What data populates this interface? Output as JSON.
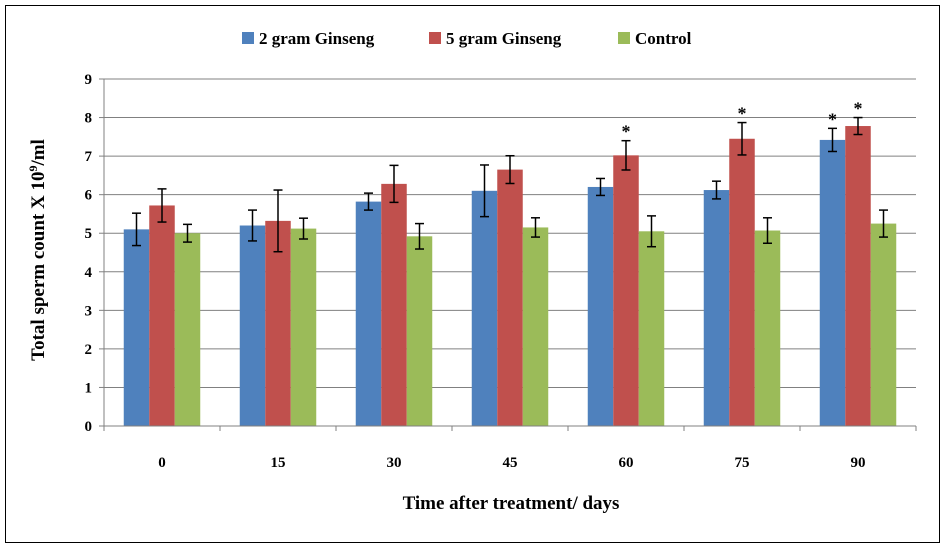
{
  "chart_data": {
    "type": "bar",
    "title": "",
    "xlabel": "Time after treatment/ days",
    "ylabel": "Total sperm count X 10",
    "ylabel_sup": "9",
    "ylabel_tail": "/ml",
    "categories": [
      "0",
      "15",
      "30",
      "45",
      "60",
      "75",
      "90"
    ],
    "ylim": [
      0,
      9
    ],
    "yticks": [
      "0",
      "1",
      "2",
      "3",
      "4",
      "5",
      "6",
      "7",
      "8",
      "9"
    ],
    "grid": true,
    "legend_position": "top",
    "series": [
      {
        "name": "2 gram Ginseng",
        "color": "#4F81BD",
        "values": [
          5.1,
          5.2,
          5.82,
          6.1,
          6.2,
          6.12,
          7.42
        ],
        "errors": [
          0.42,
          0.4,
          0.22,
          0.67,
          0.22,
          0.23,
          0.3
        ],
        "markers": [
          "",
          "",
          "",
          "",
          "",
          "",
          "*"
        ]
      },
      {
        "name": "5 gram Ginseng",
        "color": "#C0504D",
        "values": [
          5.72,
          5.32,
          6.28,
          6.65,
          7.02,
          7.45,
          7.78
        ],
        "errors": [
          0.43,
          0.8,
          0.48,
          0.36,
          0.38,
          0.42,
          0.22
        ],
        "markers": [
          "",
          "",
          "",
          "",
          "*",
          "*",
          "*"
        ]
      },
      {
        "name": "Control",
        "color": "#9BBB59",
        "values": [
          5.0,
          5.12,
          4.92,
          5.15,
          5.05,
          5.07,
          5.25
        ],
        "errors": [
          0.23,
          0.27,
          0.33,
          0.25,
          0.4,
          0.33,
          0.35
        ],
        "markers": [
          "",
          "",
          "",
          "",
          "",
          "",
          ""
        ]
      }
    ]
  }
}
